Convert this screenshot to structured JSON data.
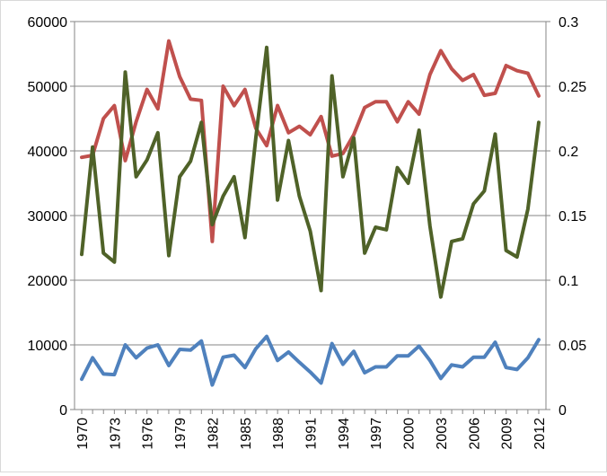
{
  "chart_data": {
    "type": "line",
    "title": "",
    "xlabel": "",
    "ylabel_left": "",
    "ylabel_right": "",
    "x": [
      1970,
      1971,
      1972,
      1973,
      1974,
      1975,
      1976,
      1977,
      1978,
      1979,
      1980,
      1981,
      1982,
      1983,
      1984,
      1985,
      1986,
      1987,
      1988,
      1989,
      1990,
      1991,
      1992,
      1993,
      1994,
      1995,
      1996,
      1997,
      1998,
      1999,
      2000,
      2001,
      2002,
      2003,
      2004,
      2005,
      2006,
      2007,
      2008,
      2009,
      2010,
      2011,
      2012
    ],
    "x_tick_labels": [
      "1970",
      "1973",
      "1976",
      "1979",
      "1982",
      "1985",
      "1988",
      "1991",
      "1994",
      "1997",
      "2000",
      "2003",
      "2006",
      "2009",
      "2012"
    ],
    "y_left": {
      "min": 0,
      "max": 60000,
      "ticks": [
        "0",
        "10000",
        "20000",
        "30000",
        "40000",
        "50000",
        "60000"
      ]
    },
    "y_right": {
      "min": 0,
      "max": 0.3,
      "ticks": [
        "0",
        "0.05",
        "0.1",
        "0.15",
        "0.2",
        "0.25",
        "0.3"
      ]
    },
    "gridlines": true,
    "legend": "none",
    "series": [
      {
        "color": "#c0504d",
        "axis": "left",
        "values": [
          39000,
          39300,
          45000,
          47000,
          38500,
          44500,
          49500,
          46500,
          57000,
          51500,
          48000,
          47800,
          26000,
          50000,
          47000,
          49500,
          43500,
          40800,
          47000,
          42800,
          43800,
          42500,
          45300,
          39200,
          39600,
          42500,
          46700,
          47600,
          47600,
          44500,
          47600,
          45700,
          51800,
          55500,
          52700,
          50900,
          51800,
          48600,
          48900,
          53200,
          52400,
          52000,
          48500
        ]
      },
      {
        "color": "#4f6228",
        "axis": "right",
        "values": [
          0.12,
          0.203,
          0.121,
          0.114,
          0.261,
          0.18,
          0.193,
          0.214,
          0.119,
          0.18,
          0.192,
          0.222,
          0.143,
          0.165,
          0.18,
          0.133,
          0.21,
          0.28,
          0.162,
          0.208,
          0.165,
          0.138,
          0.092,
          0.258,
          0.18,
          0.21,
          0.121,
          0.141,
          0.139,
          0.187,
          0.175,
          0.216,
          0.142,
          0.087,
          0.13,
          0.132,
          0.159,
          0.169,
          0.213,
          0.123,
          0.118,
          0.155,
          0.222
        ]
      },
      {
        "color": "#4f81bd",
        "axis": "left",
        "values": [
          4700,
          8000,
          5500,
          5400,
          10000,
          8000,
          9500,
          10000,
          6800,
          9300,
          9200,
          10600,
          3800,
          8100,
          8400,
          6500,
          9400,
          11300,
          7600,
          8900,
          7300,
          5800,
          4100,
          10200,
          7000,
          9000,
          5700,
          6600,
          6600,
          8300,
          8300,
          9800,
          7600,
          4800,
          6900,
          6600,
          8100,
          8100,
          10400,
          6500,
          6200,
          8000,
          10800
        ]
      }
    ]
  }
}
